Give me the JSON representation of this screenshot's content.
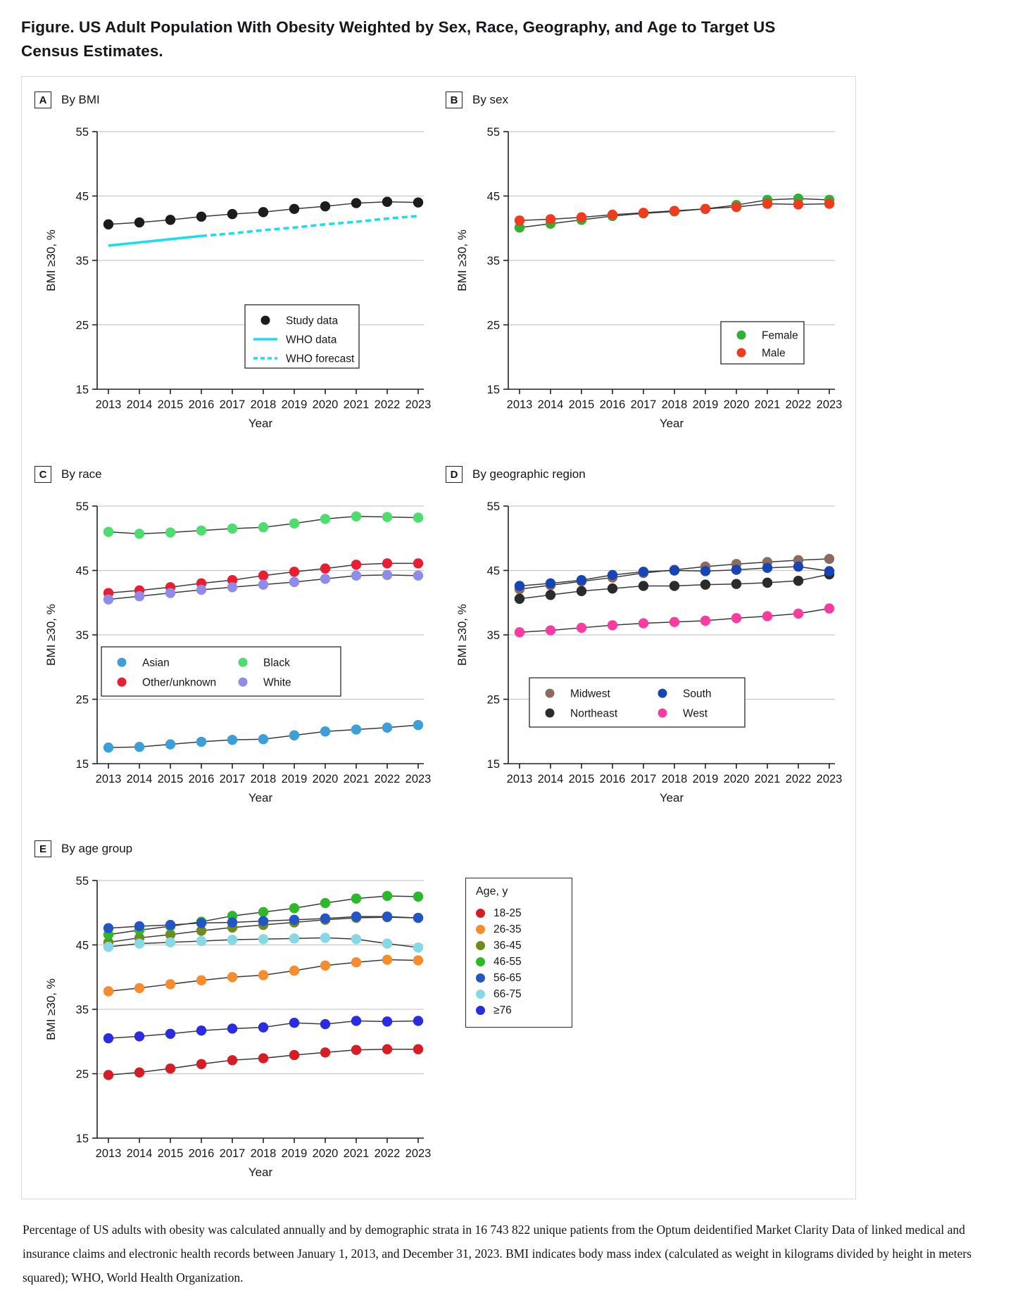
{
  "header": {
    "title": "Figure. US Adult Population With Obesity Weighted by Sex, Race, Geography, and Age to Target US Census Estimates."
  },
  "caption": {
    "text": "Percentage of US adults with obesity was calculated annually and by demographic strata in 16 743 822 unique patients from the Optum deidentified Market Clarity Data of linked medical and insurance claims and electronic health records between January 1, 2013, and December 31, 2023. BMI indicates body mass index (calculated as weight in kilograms divided by height in meters squared); WHO, World Health Organization."
  },
  "chart_data": [
    {
      "type": "line",
      "panel_label": "A",
      "title": "By BMI",
      "years": [
        2013,
        2014,
        2015,
        2016,
        2017,
        2018,
        2019,
        2020,
        2021,
        2022,
        2023
      ],
      "axes": {
        "ylabel": "BMI ≥30, %",
        "xlabel": "Year",
        "yticks": [
          15,
          25,
          35,
          45,
          55
        ],
        "ylim": [
          15,
          55
        ],
        "grid": true,
        "legend_position": "inside-lower-right"
      },
      "series": [
        {
          "name": "Study data",
          "style": "points",
          "color": "#1c1c1c",
          "values": [
            40.6,
            40.9,
            41.3,
            41.8,
            42.2,
            42.5,
            43.0,
            43.4,
            43.9,
            44.1,
            44.0
          ]
        },
        {
          "name": "WHO data",
          "style": "line",
          "color": "#17dfee",
          "years": [
            2013,
            2014,
            2015,
            2016
          ],
          "values": [
            37.3,
            37.8,
            38.3,
            38.8
          ]
        },
        {
          "name": "WHO forecast",
          "style": "dashed",
          "color": "#17dfee",
          "years": [
            2016,
            2017,
            2018,
            2019,
            2020,
            2021,
            2022,
            2023
          ],
          "values": [
            38.8,
            39.2,
            39.7,
            40.1,
            40.6,
            41.0,
            41.5,
            41.9
          ]
        }
      ]
    },
    {
      "type": "line",
      "panel_label": "B",
      "title": "By sex",
      "years": [
        2013,
        2014,
        2015,
        2016,
        2017,
        2018,
        2019,
        2020,
        2021,
        2022,
        2023
      ],
      "axes": {
        "ylabel": "BMI ≥30, %",
        "xlabel": "Year",
        "yticks": [
          15,
          25,
          35,
          45,
          55
        ],
        "ylim": [
          15,
          55
        ],
        "grid": true,
        "legend_position": "inside-lower-right"
      },
      "series": [
        {
          "name": "Female",
          "style": "points",
          "color": "#2eb135",
          "values": [
            40.1,
            40.7,
            41.3,
            41.9,
            42.3,
            42.6,
            43.0,
            43.6,
            44.4,
            44.6,
            44.4
          ]
        },
        {
          "name": "Male",
          "style": "points",
          "color": "#ef3b20",
          "values": [
            41.2,
            41.4,
            41.7,
            42.1,
            42.4,
            42.7,
            43.0,
            43.3,
            43.8,
            43.7,
            43.8
          ]
        }
      ]
    },
    {
      "type": "line",
      "panel_label": "C",
      "title": "By race",
      "years": [
        2013,
        2014,
        2015,
        2016,
        2017,
        2018,
        2019,
        2020,
        2021,
        2022,
        2023
      ],
      "axes": {
        "ylabel": "BMI ≥30, %",
        "xlabel": "Year",
        "yticks": [
          15,
          25,
          35,
          45,
          55
        ],
        "ylim": [
          15,
          55
        ],
        "grid": true,
        "legend_position": "inside-middle-left"
      },
      "series": [
        {
          "name": "Asian",
          "style": "points",
          "color": "#3d9ed8",
          "values": [
            17.5,
            17.6,
            18.0,
            18.4,
            18.7,
            18.8,
            19.4,
            20.0,
            20.3,
            20.6,
            21.0
          ]
        },
        {
          "name": "Other/unknown",
          "style": "points",
          "color": "#e81f33",
          "values": [
            41.5,
            41.9,
            42.4,
            43.0,
            43.5,
            44.2,
            44.8,
            45.3,
            45.9,
            46.1,
            46.1
          ]
        },
        {
          "name": "Black",
          "style": "points",
          "color": "#4edc6e",
          "values": [
            51.0,
            50.7,
            50.9,
            51.2,
            51.5,
            51.7,
            52.3,
            53.0,
            53.4,
            53.3,
            53.2
          ]
        },
        {
          "name": "White",
          "style": "points",
          "color": "#8f8ce9",
          "values": [
            40.5,
            41.0,
            41.5,
            42.0,
            42.4,
            42.8,
            43.2,
            43.7,
            44.2,
            44.3,
            44.2
          ]
        }
      ]
    },
    {
      "type": "line",
      "panel_label": "D",
      "title": "By geographic region",
      "years": [
        2013,
        2014,
        2015,
        2016,
        2017,
        2018,
        2019,
        2020,
        2021,
        2022,
        2023
      ],
      "axes": {
        "ylabel": "BMI ≥30, %",
        "xlabel": "Year",
        "yticks": [
          15,
          25,
          35,
          45,
          55
        ],
        "ylim": [
          15,
          55
        ],
        "grid": true,
        "legend_position": "inside-lower-left"
      },
      "series": [
        {
          "name": "Midwest",
          "style": "points",
          "color": "#8a6b5e",
          "values": [
            42.1,
            42.7,
            43.3,
            43.9,
            44.6,
            45.1,
            45.6,
            46.0,
            46.3,
            46.6,
            46.8
          ]
        },
        {
          "name": "Northeast",
          "style": "points",
          "color": "#2b2b2b",
          "values": [
            40.6,
            41.2,
            41.8,
            42.2,
            42.6,
            42.6,
            42.8,
            42.9,
            43.1,
            43.4,
            44.4
          ]
        },
        {
          "name": "South",
          "style": "points",
          "color": "#1845b5",
          "values": [
            42.6,
            43.0,
            43.5,
            44.3,
            44.8,
            45.0,
            44.9,
            45.1,
            45.4,
            45.6,
            44.9
          ]
        },
        {
          "name": "West",
          "style": "points",
          "color": "#fb3aa2",
          "values": [
            35.4,
            35.7,
            36.1,
            36.5,
            36.8,
            37.0,
            37.2,
            37.6,
            37.9,
            38.3,
            39.1
          ]
        }
      ]
    },
    {
      "type": "line",
      "panel_label": "E",
      "title": "By age group",
      "legend_title": "Age, y",
      "years": [
        2013,
        2014,
        2015,
        2016,
        2017,
        2018,
        2019,
        2020,
        2021,
        2022,
        2023
      ],
      "axes": {
        "ylabel": "BMI ≥30, %",
        "xlabel": "Year",
        "yticks": [
          15,
          25,
          35,
          45,
          55
        ],
        "ylim": [
          15,
          55
        ],
        "grid": true,
        "legend_position": "outside-right"
      },
      "series": [
        {
          "name": "18-25",
          "style": "points",
          "color": "#d61c24",
          "values": [
            24.8,
            25.2,
            25.8,
            26.5,
            27.1,
            27.4,
            27.9,
            28.3,
            28.7,
            28.8,
            28.8
          ]
        },
        {
          "name": "26-35",
          "style": "points",
          "color": "#f68c2e",
          "values": [
            37.8,
            38.3,
            38.9,
            39.5,
            40.0,
            40.3,
            41.0,
            41.8,
            42.3,
            42.7,
            42.6
          ]
        },
        {
          "name": "36-45",
          "style": "points",
          "color": "#718a1e",
          "values": [
            45.4,
            46.1,
            46.6,
            47.2,
            47.7,
            48.1,
            48.5,
            48.9,
            49.2,
            49.3,
            49.2
          ]
        },
        {
          "name": "46-55",
          "style": "points",
          "color": "#2db82b",
          "values": [
            46.6,
            47.3,
            47.9,
            48.6,
            49.5,
            50.1,
            50.7,
            51.5,
            52.2,
            52.6,
            52.5
          ]
        },
        {
          "name": "56-65",
          "style": "points",
          "color": "#2356c4",
          "values": [
            47.6,
            47.9,
            48.1,
            48.4,
            48.5,
            48.7,
            48.9,
            49.1,
            49.4,
            49.4,
            49.2
          ]
        },
        {
          "name": "66-75",
          "style": "points",
          "color": "#85d8e4",
          "values": [
            44.7,
            45.2,
            45.4,
            45.6,
            45.8,
            45.9,
            46.0,
            46.1,
            45.9,
            45.2,
            44.6
          ]
        },
        {
          "name": "≥76",
          "style": "points",
          "color": "#2b2bdf",
          "values": [
            30.5,
            30.8,
            31.2,
            31.7,
            32.0,
            32.2,
            32.9,
            32.7,
            33.2,
            33.1,
            33.2
          ]
        }
      ]
    }
  ]
}
